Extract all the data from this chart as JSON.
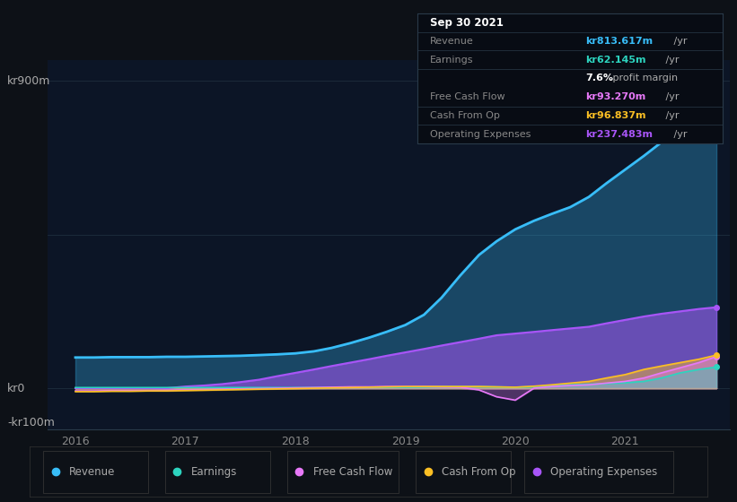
{
  "bg_color": "#0d1117",
  "plot_bg_color": "#0c1526",
  "grid_color": "#1e2d3d",
  "ylabel_top": "kr900m",
  "ylabel_zero": "kr0",
  "ylabel_neg": "-kr100m",
  "x_ticks": [
    "2016",
    "2017",
    "2018",
    "2019",
    "2020",
    "2021"
  ],
  "legend": [
    {
      "label": "Revenue",
      "color": "#38bdf8"
    },
    {
      "label": "Earnings",
      "color": "#2dd4bf"
    },
    {
      "label": "Free Cash Flow",
      "color": "#e879f9"
    },
    {
      "label": "Cash From Op",
      "color": "#fbbf24"
    },
    {
      "label": "Operating Expenses",
      "color": "#a855f7"
    }
  ],
  "info_box": {
    "date": "Sep 30 2021",
    "date_color": "#ffffff",
    "rows": [
      {
        "label": "Revenue",
        "label_color": "#888888",
        "value": "kr813.617m",
        "value_color": "#38bdf8",
        "unit": " /yr",
        "unit_color": "#aaaaaa",
        "extra": null
      },
      {
        "label": "Earnings",
        "label_color": "#888888",
        "value": "kr62.145m",
        "value_color": "#2dd4bf",
        "unit": " /yr",
        "unit_color": "#aaaaaa",
        "extra": {
          "text": "7.6% profit margin",
          "bold": "7.6%",
          "rest": " profit margin"
        }
      },
      {
        "label": "Free Cash Flow",
        "label_color": "#888888",
        "value": "kr93.270m",
        "value_color": "#e879f9",
        "unit": " /yr",
        "unit_color": "#aaaaaa",
        "extra": null
      },
      {
        "label": "Cash From Op",
        "label_color": "#888888",
        "value": "kr96.837m",
        "value_color": "#fbbf24",
        "unit": " /yr",
        "unit_color": "#aaaaaa",
        "extra": null
      },
      {
        "label": "Operating Expenses",
        "label_color": "#888888",
        "value": "kr237.483m",
        "value_color": "#a855f7",
        "unit": " /yr",
        "unit_color": "#aaaaaa",
        "extra": null
      }
    ]
  },
  "series": {
    "x": [
      2016.0,
      2016.17,
      2016.33,
      2016.5,
      2016.67,
      2016.83,
      2017.0,
      2017.17,
      2017.33,
      2017.5,
      2017.67,
      2017.83,
      2018.0,
      2018.17,
      2018.33,
      2018.5,
      2018.67,
      2018.83,
      2019.0,
      2019.17,
      2019.33,
      2019.5,
      2019.67,
      2019.83,
      2020.0,
      2020.17,
      2020.33,
      2020.5,
      2020.67,
      2020.83,
      2021.0,
      2021.17,
      2021.33,
      2021.5,
      2021.67,
      2021.83
    ],
    "revenue": [
      90,
      90,
      91,
      91,
      91,
      92,
      92,
      93,
      94,
      95,
      97,
      99,
      102,
      108,
      118,
      132,
      148,
      165,
      185,
      215,
      265,
      330,
      390,
      430,
      465,
      490,
      510,
      530,
      560,
      600,
      640,
      680,
      720,
      760,
      790,
      813
    ],
    "earnings": [
      2,
      2,
      2,
      2,
      2,
      2,
      2,
      2,
      2,
      2,
      2,
      2,
      2,
      2,
      2,
      3,
      3,
      3,
      3,
      4,
      5,
      5,
      5,
      4,
      3,
      5,
      7,
      10,
      12,
      14,
      16,
      20,
      30,
      45,
      55,
      62
    ],
    "free_cash_flow": [
      -8,
      -8,
      -7,
      -7,
      -7,
      -6,
      -5,
      -4,
      -3,
      -2,
      -1,
      0,
      1,
      2,
      3,
      4,
      4,
      5,
      5,
      5,
      4,
      3,
      -5,
      -25,
      -35,
      0,
      5,
      8,
      10,
      15,
      20,
      30,
      45,
      60,
      75,
      93
    ],
    "cash_from_op": [
      -10,
      -10,
      -9,
      -9,
      -8,
      -8,
      -7,
      -6,
      -5,
      -4,
      -3,
      -2,
      -1,
      0,
      1,
      2,
      3,
      4,
      5,
      5,
      5,
      5,
      5,
      4,
      3,
      6,
      10,
      15,
      20,
      30,
      40,
      55,
      65,
      75,
      85,
      97
    ],
    "operating_expenses": [
      0,
      0,
      0,
      0,
      0,
      0,
      5,
      8,
      12,
      18,
      25,
      35,
      45,
      55,
      65,
      75,
      85,
      95,
      105,
      115,
      125,
      135,
      145,
      155,
      160,
      165,
      170,
      175,
      180,
      190,
      200,
      210,
      218,
      225,
      232,
      237
    ]
  }
}
